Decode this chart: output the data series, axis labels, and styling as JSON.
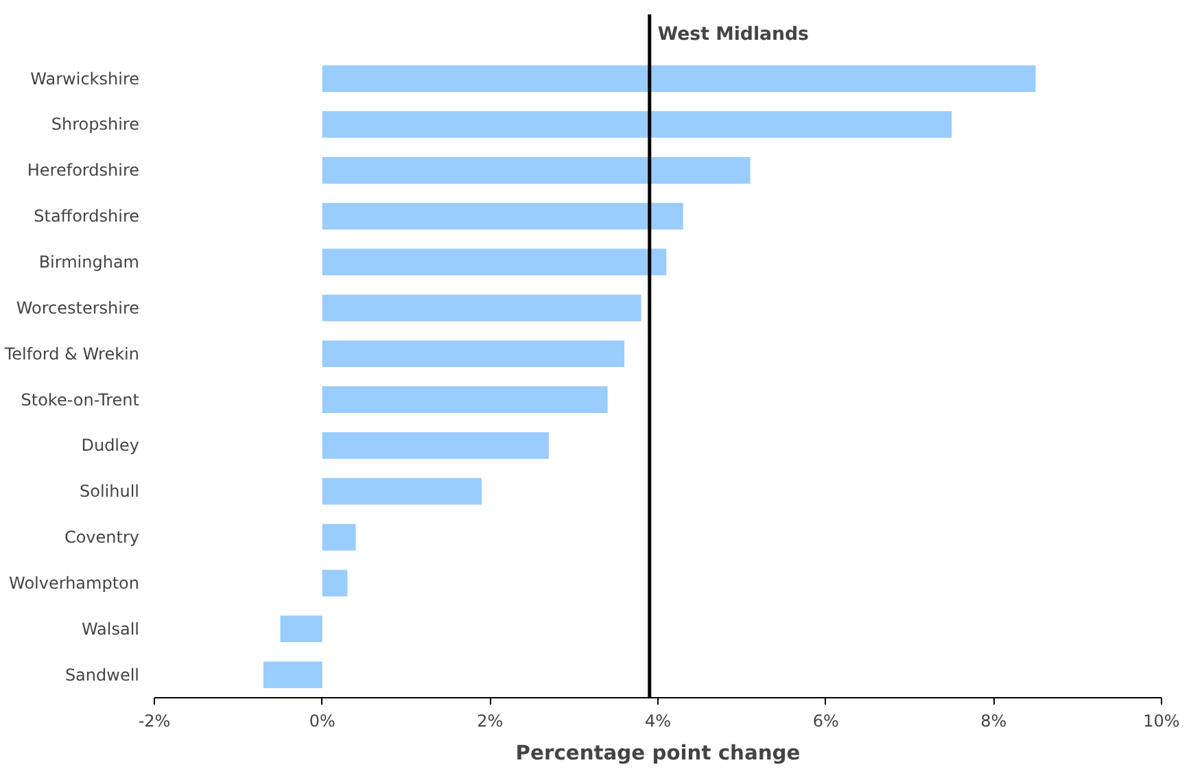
{
  "chart_data": {
    "type": "bar",
    "orientation": "horizontal",
    "xlabel": "Percentage point change",
    "categories": [
      "Warwickshire",
      "Shropshire",
      "Herefordshire",
      "Staffordshire",
      "Birmingham",
      "Worcestershire",
      "Telford & Wrekin",
      "Stoke-on-Trent",
      "Dudley",
      "Solihull",
      "Coventry",
      "Wolverhampton",
      "Walsall",
      "Sandwell"
    ],
    "values": [
      8.5,
      7.5,
      5.1,
      4.3,
      4.1,
      3.8,
      3.6,
      3.4,
      2.7,
      1.9,
      0.4,
      0.3,
      -0.5,
      -0.7
    ],
    "color": "#99ccff",
    "xlim": [
      -2,
      10
    ],
    "xticks": [
      {
        "value": -2,
        "label": "-2%"
      },
      {
        "value": 0,
        "label": "0%"
      },
      {
        "value": 2,
        "label": "2%"
      },
      {
        "value": 4,
        "label": "4%"
      },
      {
        "value": 6,
        "label": "6%"
      },
      {
        "value": 8,
        "label": "8%"
      },
      {
        "value": 10,
        "label": "10%"
      }
    ],
    "ref_lines": [
      {
        "axis": "x",
        "value": 3.9,
        "label": "West Midlands",
        "color": "#000000"
      }
    ],
    "grid": false
  }
}
